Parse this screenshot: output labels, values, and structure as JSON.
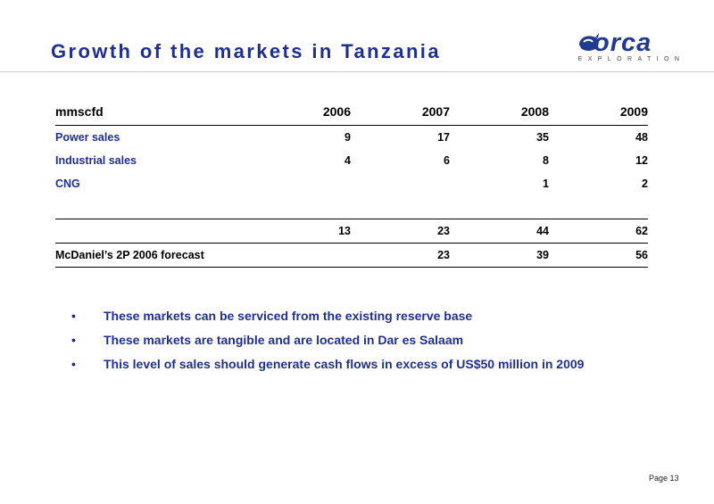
{
  "title": "Growth of the markets in Tanzania",
  "logo": {
    "word": "orca",
    "sub": "EXPLORATION"
  },
  "table": {
    "header": [
      "mmscfd",
      "2006",
      "2007",
      "2008",
      "2009"
    ],
    "rows": [
      [
        "Power sales",
        "9",
        "17",
        "35",
        "48"
      ],
      [
        "Industrial sales",
        "4",
        "6",
        "8",
        "12"
      ],
      [
        "CNG",
        "",
        "",
        "1",
        "2"
      ]
    ],
    "total": [
      "",
      "13",
      "23",
      "44",
      "62"
    ],
    "forecast": [
      "McDaniel’s 2P 2006 forecast",
      "",
      "23",
      "39",
      "56"
    ]
  },
  "bullets": [
    "These markets can be serviced from the existing reserve base",
    "These markets are tangible and are located in Dar es Salaam",
    "This level of sales should generate cash flows in excess of US$50 million in 2009"
  ],
  "bullet_glyph": "•",
  "page": "Page 13"
}
